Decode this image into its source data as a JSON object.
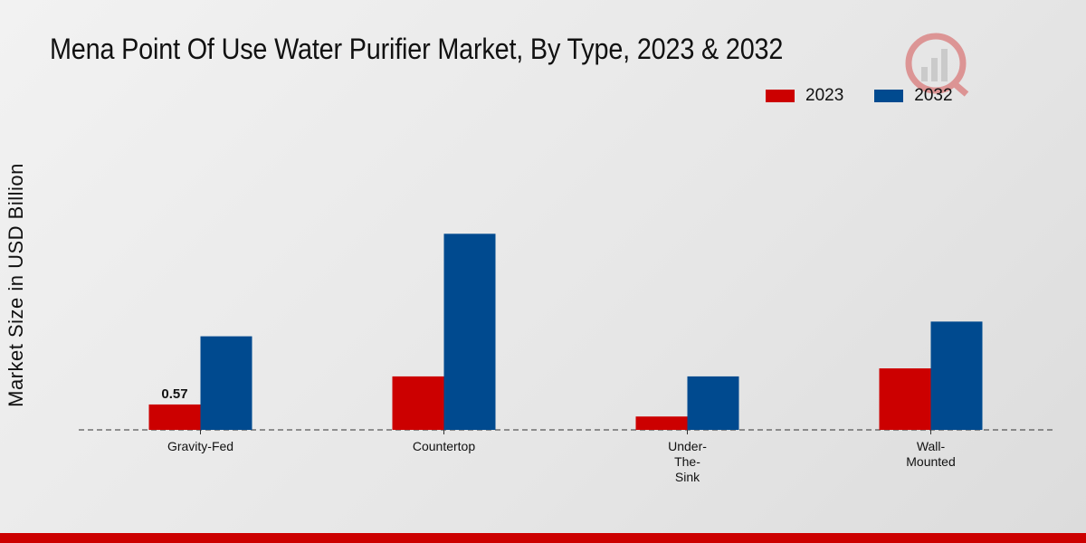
{
  "chart_data": {
    "type": "bar",
    "title": "Mena Point Of Use Water Purifier Market, By Type, 2023 & 2032",
    "ylabel": "Market Size in USD Billion",
    "xlabel": "",
    "categories": [
      "Gravity-Fed",
      "Countertop",
      "Under-The-Sink",
      "Wall-Mounted"
    ],
    "category_lines": [
      [
        "Gravity-Fed"
      ],
      [
        "Countertop"
      ],
      [
        "Under-",
        "The-",
        "Sink"
      ],
      [
        "Wall-",
        "Mounted"
      ]
    ],
    "series": [
      {
        "name": "2023",
        "color": "#cc0000",
        "values": [
          0.57,
          1.2,
          0.3,
          1.38
        ]
      },
      {
        "name": "2032",
        "color": "#004a8f",
        "values": [
          2.1,
          4.4,
          1.2,
          2.43
        ]
      }
    ],
    "data_labels": [
      {
        "series": 0,
        "index": 0,
        "text": "0.57"
      }
    ],
    "ylim": [
      0,
      6.6
    ],
    "grid": false,
    "legend_position": "top-right",
    "baseline_style": "dashed"
  }
}
